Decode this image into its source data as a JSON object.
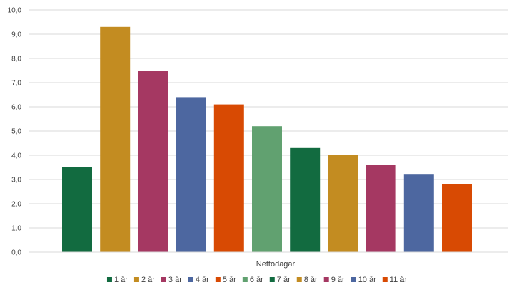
{
  "chart_data": {
    "type": "bar",
    "categories": [
      "Nettodagar"
    ],
    "series": [
      {
        "name": "1 år",
        "values": [
          3.5
        ],
        "color": "#126b40"
      },
      {
        "name": "2 år",
        "values": [
          9.3
        ],
        "color": "#c38c21"
      },
      {
        "name": "3 år",
        "values": [
          7.5
        ],
        "color": "#a53862"
      },
      {
        "name": "4 år",
        "values": [
          6.4
        ],
        "color": "#4d67a0"
      },
      {
        "name": "5 år",
        "values": [
          6.1
        ],
        "color": "#d84a03"
      },
      {
        "name": "6 år",
        "values": [
          5.2
        ],
        "color": "#61a170"
      },
      {
        "name": "7 år",
        "values": [
          4.3
        ],
        "color": "#126b40"
      },
      {
        "name": "8 år",
        "values": [
          4.0
        ],
        "color": "#c38c21"
      },
      {
        "name": "9 år",
        "values": [
          3.6
        ],
        "color": "#a53862"
      },
      {
        "name": "10 år",
        "values": [
          3.2
        ],
        "color": "#4d67a0"
      },
      {
        "name": "11 år",
        "values": [
          2.8
        ],
        "color": "#d84a03"
      }
    ],
    "yticks": [
      "0,0",
      "1,0",
      "2,0",
      "3,0",
      "4,0",
      "5,0",
      "6,0",
      "7,0",
      "8,0",
      "9,0",
      "10,0"
    ],
    "ylim": [
      0,
      10
    ],
    "grid": true,
    "legend_position": "bottom",
    "title": "",
    "xlabel": "",
    "ylabel": ""
  }
}
